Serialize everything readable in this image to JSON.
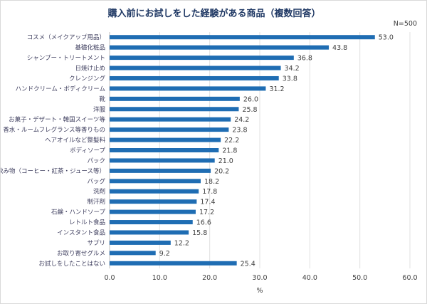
{
  "chart_data": {
    "type": "bar",
    "orientation": "horizontal",
    "title": "購入前にお試しをした経験がある商品（複数回答）",
    "annotation": "N=500",
    "xlabel": "%",
    "ylabel": "",
    "xlim": [
      0,
      60
    ],
    "xticks": [
      "0.0",
      "10.0",
      "20.0",
      "30.0",
      "40.0",
      "50.0",
      "60.0"
    ],
    "grid": true,
    "bar_color": "#1f6db3",
    "title_color": "#1f3864",
    "categories": [
      "コスメ（メイクアップ用品）",
      "基礎化粧品",
      "シャンプー・トリートメント",
      "日焼け止め",
      "クレンジング",
      "ハンドクリーム・ボディクリーム",
      "靴",
      "洋服",
      "お菓子・デザート・韓国スイーツ等",
      "香水・ルームフレグランス等香りもの",
      "ヘアオイルなど整髪料",
      "ボディソープ",
      "パック",
      "飲み物（コーヒー・紅茶・ジュース等）",
      "バッグ",
      "洗剤",
      "制汗剤",
      "石鹸・ハンドソープ",
      "レトルト食品",
      "インスタント食品",
      "サプリ",
      "お取り寄せグルメ",
      "お試しをしたことはない"
    ],
    "values": [
      53.0,
      43.8,
      36.8,
      34.2,
      33.8,
      31.2,
      26.0,
      25.8,
      24.2,
      23.8,
      22.2,
      21.8,
      21.0,
      20.2,
      18.2,
      17.8,
      17.4,
      17.2,
      16.6,
      15.8,
      12.2,
      9.2,
      25.4
    ]
  }
}
